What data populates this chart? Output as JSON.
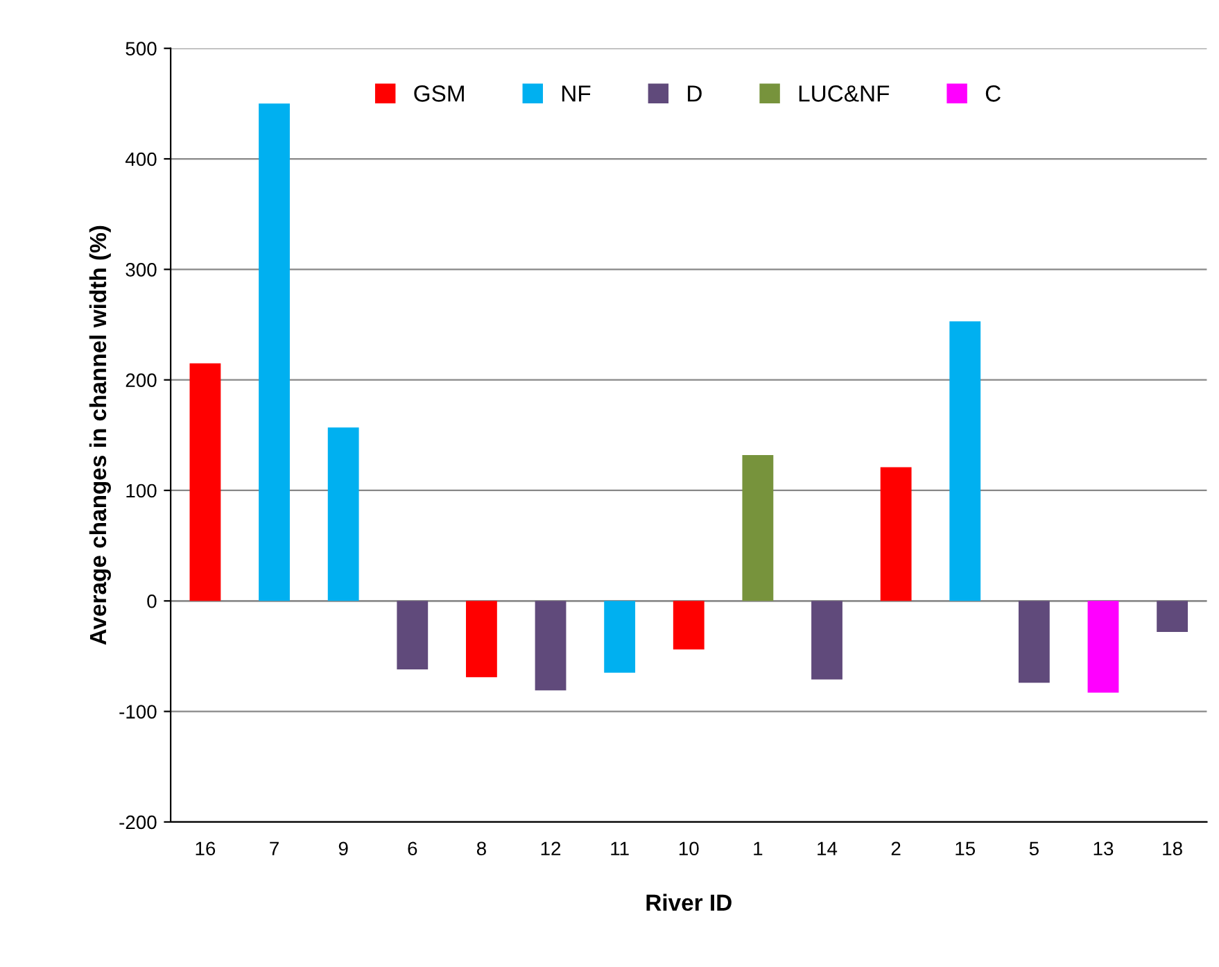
{
  "chart_data": {
    "type": "bar",
    "xlabel": "River ID",
    "ylabel": "Average changes in channel width (%)",
    "categories": [
      "16",
      "7",
      "9",
      "6",
      "8",
      "12",
      "11",
      "10",
      "1",
      "14",
      "2",
      "15",
      "5",
      "13",
      "18"
    ],
    "series": [
      {
        "name": "GSM",
        "color": "#ff0000",
        "values": [
          215,
          null,
          null,
          null,
          -69,
          null,
          null,
          -44,
          null,
          null,
          121,
          null,
          null,
          null,
          null
        ]
      },
      {
        "name": "NF",
        "color": "#00b0f0",
        "values": [
          null,
          450,
          157,
          null,
          null,
          null,
          -65,
          null,
          null,
          null,
          null,
          253,
          null,
          null,
          null
        ]
      },
      {
        "name": "D",
        "color": "#604a7b",
        "values": [
          null,
          null,
          null,
          -62,
          null,
          -81,
          null,
          null,
          null,
          -71,
          null,
          null,
          -74,
          null,
          -28
        ]
      },
      {
        "name": "LUC&NF",
        "color": "#77933c",
        "values": [
          null,
          null,
          null,
          null,
          null,
          null,
          null,
          null,
          132,
          null,
          null,
          null,
          null,
          null,
          null
        ]
      },
      {
        "name": "C",
        "color": "#ff00ff",
        "values": [
          null,
          null,
          null,
          null,
          null,
          null,
          null,
          null,
          null,
          null,
          null,
          null,
          null,
          -83,
          null
        ]
      }
    ],
    "ylim": [
      -200,
      500
    ],
    "yticks": [
      -200,
      -100,
      0,
      100,
      200,
      300,
      400,
      500
    ],
    "grid": "y",
    "legend": "top"
  }
}
